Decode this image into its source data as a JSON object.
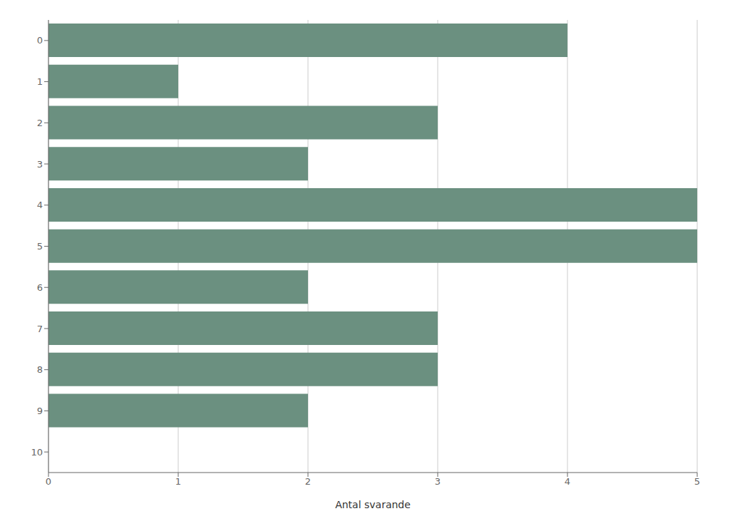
{
  "chart_data": {
    "type": "bar",
    "orientation": "horizontal",
    "categories": [
      0,
      1,
      2,
      3,
      4,
      5,
      6,
      7,
      8,
      9,
      10
    ],
    "values": [
      4,
      1,
      3,
      2,
      5,
      5,
      2,
      3,
      3,
      2,
      0
    ],
    "color": "#6b9080",
    "xlabel": "Antal svarande",
    "xlim": [
      0,
      5.0
    ],
    "xticks": [
      0,
      1,
      2,
      3,
      4,
      5
    ],
    "ylim": [
      -0.5,
      10.5
    ],
    "yticks": [
      0,
      1,
      2,
      3,
      4,
      5,
      6,
      7,
      8,
      9,
      10
    ],
    "grid": true
  }
}
